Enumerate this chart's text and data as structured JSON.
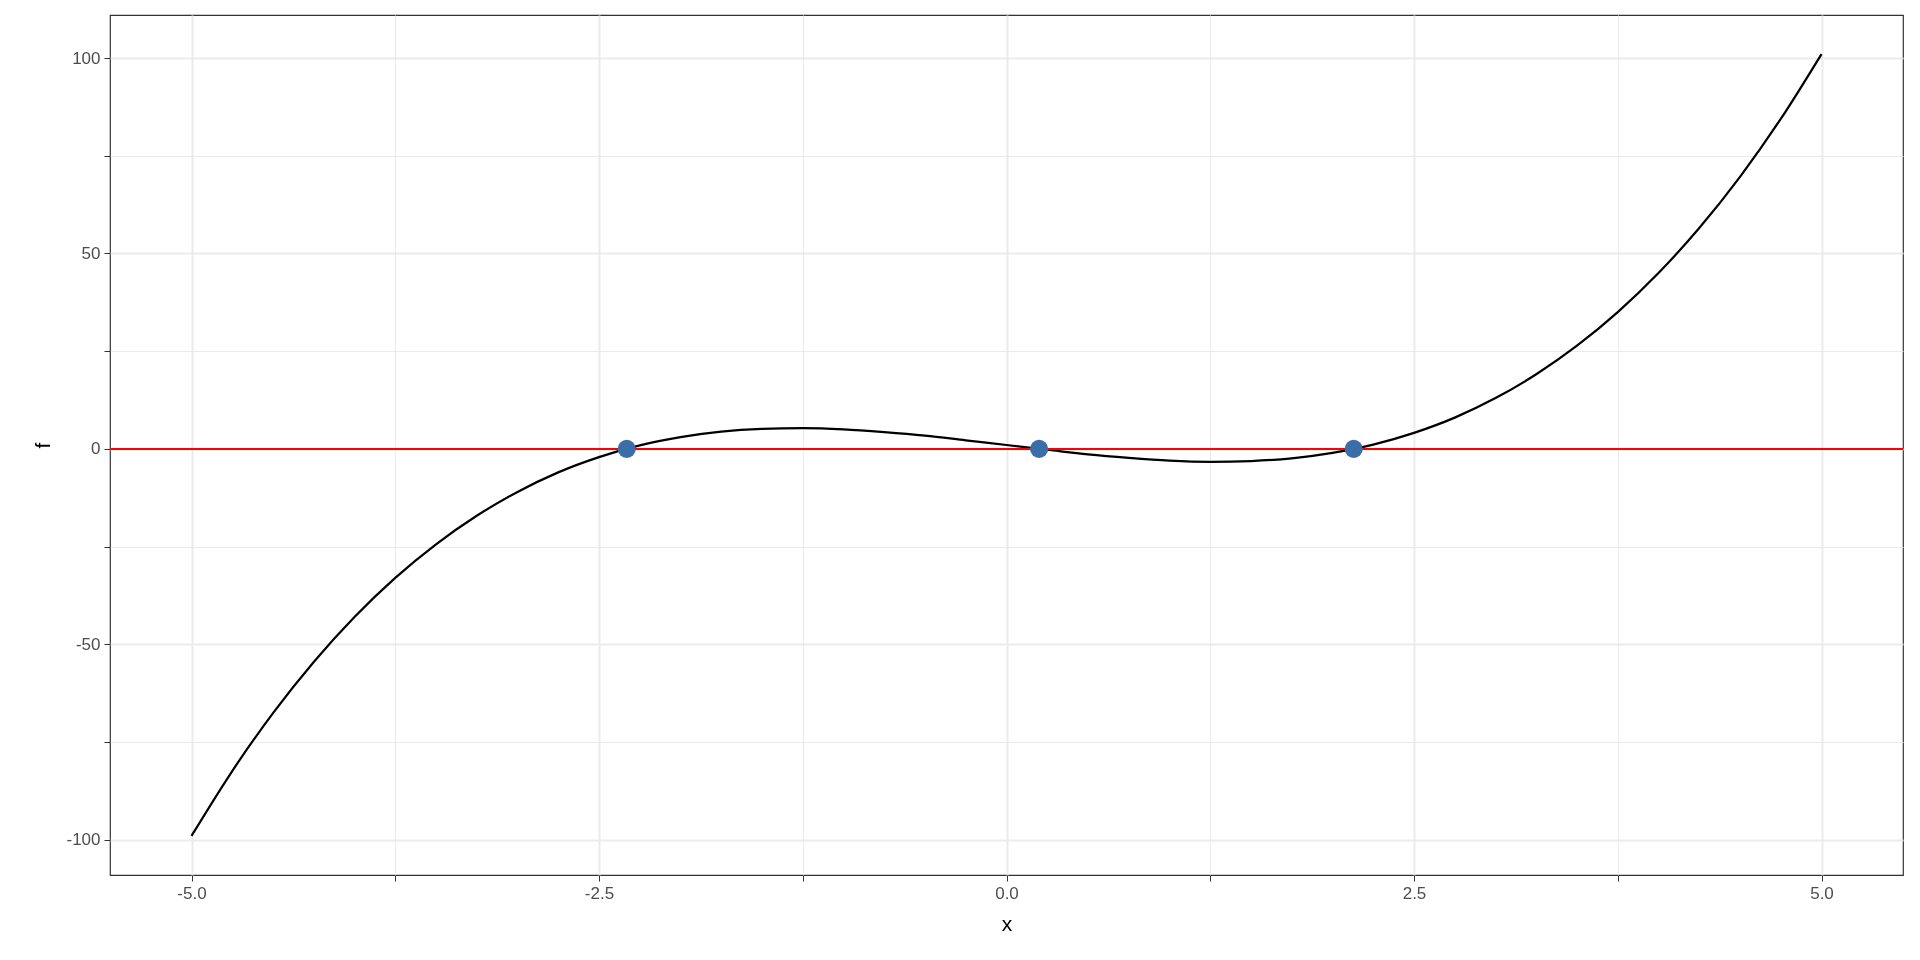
{
  "chart_data": {
    "type": "line",
    "xlabel": "x",
    "ylabel": "f",
    "xlim": [
      -5.5,
      5.5
    ],
    "ylim": [
      -109,
      111
    ],
    "xticks": [
      {
        "value": -5,
        "label": "-5.0"
      },
      {
        "value": -3.75,
        "label": null
      },
      -2.5,
      {
        "value": -1.25,
        "label": null
      },
      {
        "value": 0,
        "label": "0.0"
      },
      {
        "value": 1.25,
        "label": null
      },
      2.5,
      {
        "value": 3.75,
        "label": null
      },
      {
        "value": 5,
        "label": "5.0"
      }
    ],
    "yticks": [
      -100,
      {
        "value": -75,
        "label": null
      },
      -50,
      {
        "value": -25,
        "label": null
      },
      0,
      {
        "value": 25,
        "label": null
      },
      50,
      {
        "value": 75,
        "label": null
      },
      100
    ],
    "grid": true,
    "series": [
      {
        "color": "#000000",
        "line_style": "solid",
        "x": [
          -5,
          -4.75,
          -4.5,
          -4.25,
          -4,
          -3.75,
          -3.5,
          -3.25,
          -3,
          -2.75,
          -2.5,
          -2.25,
          -2,
          -1.75,
          -1.5,
          -1.25,
          -1,
          -0.75,
          -0.5,
          -0.25,
          0,
          0.25,
          0.5,
          0.75,
          1,
          1.25,
          1.5,
          1.75,
          2,
          2.25,
          2.5,
          2.75,
          3,
          3.25,
          3.5,
          3.75,
          4,
          4.25,
          4.5,
          4.75,
          5
        ],
        "values": [
          -99,
          -82.4,
          -67.6,
          -54.5,
          -43,
          -33,
          -24.4,
          -17.1,
          -11,
          -6.0,
          -2.1,
          0.9,
          3,
          4.4,
          5.1,
          5.3,
          5,
          4.3,
          3.4,
          2.2,
          1,
          -0.2,
          -1.4,
          -2.3,
          -3,
          -3.3,
          -3.1,
          -2.4,
          -1,
          1.1,
          4.1,
          8.0,
          13,
          19.1,
          26.4,
          35,
          45,
          56.5,
          69.6,
          84.4,
          101
        ]
      },
      {
        "type": "scatter",
        "color": "#3b6ea8",
        "marker": "circle",
        "x": [
          -2.33,
          0.2,
          2.13
        ],
        "values": [
          0,
          0,
          0
        ]
      }
    ],
    "ref_lines": [
      {
        "axis": "y",
        "value": 0,
        "color": "#ff0000",
        "line_style": "solid"
      }
    ]
  }
}
